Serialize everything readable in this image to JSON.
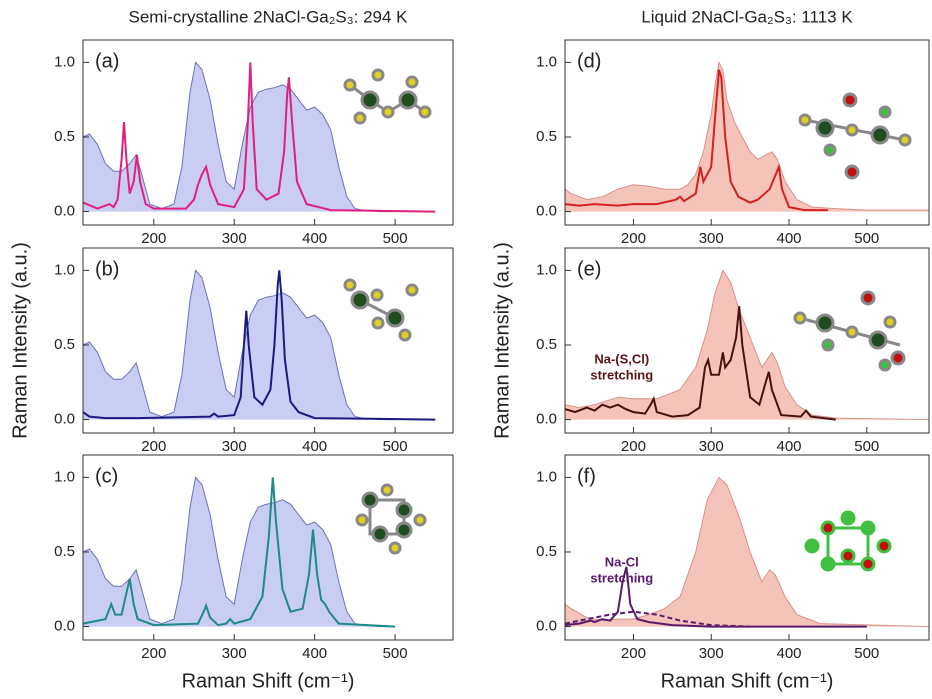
{
  "chart_data": [
    {
      "type": "line",
      "title": "Semi-crystalline 2NaCl-Ga₂S₃: 294 K",
      "label": "(a)",
      "xlim": [
        112,
        572
      ],
      "ylim": [
        -0.09,
        1.15
      ],
      "xticks": [
        200,
        300,
        400,
        500
      ],
      "yticks": [
        {
          "value": 0,
          "label": "0.0"
        },
        {
          "value": 0.5,
          "label": "0.5"
        },
        {
          "value": 1,
          "label": "1.0"
        }
      ],
      "series": [
        {
          "color": "#6c72b8",
          "fill_color": "#c9cdf3",
          "x": [
            112,
            120,
            130,
            140,
            150,
            160,
            170,
            178,
            185,
            195,
            210,
            225,
            235,
            245,
            252,
            260,
            270,
            280,
            290,
            300,
            310,
            320,
            330,
            340,
            350,
            360,
            370,
            380,
            390,
            400,
            410,
            420,
            430,
            440,
            450,
            460,
            480,
            500
          ],
          "values": [
            0.5,
            0.52,
            0.45,
            0.32,
            0.27,
            0.27,
            0.32,
            0.38,
            0.25,
            0.05,
            0.02,
            0.05,
            0.3,
            0.8,
            1.0,
            0.95,
            0.75,
            0.45,
            0.2,
            0.15,
            0.45,
            0.7,
            0.8,
            0.82,
            0.83,
            0.85,
            0.82,
            0.75,
            0.68,
            0.7,
            0.65,
            0.55,
            0.3,
            0.1,
            0.02,
            0.01,
            0,
            0
          ]
        },
        {
          "color": "#e0207f",
          "x": [
            112,
            130,
            145,
            150,
            155,
            160,
            163,
            166,
            170,
            175,
            179,
            183,
            190,
            200,
            240,
            250,
            255,
            260,
            265,
            270,
            280,
            300,
            312,
            317,
            320,
            323,
            328,
            340,
            355,
            362,
            366,
            368,
            372,
            378,
            390,
            420,
            550
          ],
          "values": [
            0.06,
            0.02,
            0.05,
            0.03,
            0.08,
            0.35,
            0.6,
            0.35,
            0.12,
            0.2,
            0.38,
            0.2,
            0.05,
            0.02,
            0.02,
            0.08,
            0.18,
            0.25,
            0.3,
            0.18,
            0.05,
            0.03,
            0.15,
            0.6,
            1.0,
            0.6,
            0.15,
            0.08,
            0.12,
            0.4,
            0.8,
            0.9,
            0.6,
            0.2,
            0.05,
            0.01,
            0
          ]
        }
      ]
    },
    {
      "type": "line",
      "label": "(b)",
      "ylabel": "Raman Intensity (a.u.)",
      "xlim": [
        112,
        572
      ],
      "ylim": [
        -0.09,
        1.15
      ],
      "xticks": [
        200,
        300,
        400,
        500
      ],
      "yticks": [
        {
          "value": 0,
          "label": "0.0"
        },
        {
          "value": 0.5,
          "label": "0.5"
        },
        {
          "value": 1,
          "label": "1.0"
        }
      ],
      "series": [
        {
          "color": "#6c72b8",
          "fill_color": "#c9cdf3",
          "x": [
            112,
            120,
            130,
            140,
            150,
            160,
            170,
            178,
            185,
            195,
            210,
            225,
            235,
            245,
            252,
            260,
            270,
            280,
            290,
            300,
            310,
            320,
            330,
            340,
            350,
            360,
            370,
            380,
            390,
            400,
            410,
            420,
            430,
            440,
            450,
            460,
            480,
            500
          ],
          "values": [
            0.5,
            0.52,
            0.45,
            0.32,
            0.27,
            0.27,
            0.32,
            0.38,
            0.25,
            0.05,
            0.02,
            0.05,
            0.3,
            0.8,
            1.0,
            0.95,
            0.75,
            0.45,
            0.2,
            0.15,
            0.45,
            0.7,
            0.8,
            0.82,
            0.83,
            0.85,
            0.82,
            0.75,
            0.68,
            0.7,
            0.65,
            0.55,
            0.3,
            0.1,
            0.02,
            0.01,
            0,
            0
          ]
        },
        {
          "color": "#1a1a80",
          "x": [
            112,
            120,
            140,
            180,
            270,
            275,
            280,
            300,
            308,
            312,
            315,
            318,
            325,
            335,
            345,
            350,
            354,
            356,
            359,
            363,
            370,
            380,
            400,
            550
          ],
          "values": [
            0.05,
            0.02,
            0.01,
            0.01,
            0.02,
            0.04,
            0.02,
            0.03,
            0.15,
            0.5,
            0.73,
            0.5,
            0.15,
            0.1,
            0.2,
            0.5,
            0.9,
            1.0,
            0.8,
            0.4,
            0.12,
            0.05,
            0.01,
            0
          ]
        }
      ]
    },
    {
      "type": "line",
      "label": "(c)",
      "xlabel": "Raman Shift (cm⁻¹)",
      "xlim": [
        112,
        572
      ],
      "ylim": [
        -0.09,
        1.15
      ],
      "xticks": [
        200,
        300,
        400,
        500
      ],
      "yticks": [
        {
          "value": 0,
          "label": "0.0"
        },
        {
          "value": 0.5,
          "label": "0.5"
        },
        {
          "value": 1,
          "label": "1.0"
        }
      ],
      "series": [
        {
          "color": "#6c72b8",
          "fill_color": "#c9cdf3",
          "x": [
            112,
            120,
            130,
            140,
            150,
            160,
            170,
            178,
            185,
            195,
            210,
            225,
            235,
            245,
            252,
            260,
            270,
            280,
            290,
            300,
            310,
            320,
            330,
            340,
            350,
            360,
            370,
            380,
            390,
            400,
            410,
            420,
            430,
            440,
            450,
            460,
            480,
            500
          ],
          "values": [
            0.5,
            0.52,
            0.45,
            0.32,
            0.27,
            0.27,
            0.32,
            0.38,
            0.25,
            0.05,
            0.02,
            0.05,
            0.3,
            0.8,
            1.0,
            0.95,
            0.75,
            0.45,
            0.2,
            0.15,
            0.45,
            0.7,
            0.8,
            0.82,
            0.83,
            0.85,
            0.82,
            0.75,
            0.68,
            0.7,
            0.65,
            0.55,
            0.3,
            0.1,
            0.02,
            0.01,
            0,
            0
          ]
        },
        {
          "color": "#1e8a8a",
          "x": [
            112,
            140,
            147,
            152,
            160,
            165,
            170,
            175,
            180,
            200,
            255,
            262,
            265,
            270,
            280,
            290,
            295,
            300,
            320,
            335,
            343,
            348,
            352,
            360,
            370,
            385,
            393,
            398,
            403,
            408,
            413,
            418,
            430,
            500
          ],
          "values": [
            0.02,
            0.05,
            0.15,
            0.08,
            0.08,
            0.2,
            0.32,
            0.15,
            0.05,
            0.01,
            0.02,
            0.1,
            0.14,
            0.06,
            0.01,
            0.02,
            0.05,
            0.02,
            0.05,
            0.2,
            0.6,
            1.0,
            0.7,
            0.25,
            0.1,
            0.12,
            0.35,
            0.65,
            0.35,
            0.18,
            0.15,
            0.1,
            0.02,
            0
          ]
        }
      ]
    },
    {
      "type": "line",
      "title": "Liquid 2NaCl-Ga₂S₃: 1113 K",
      "label": "(d)",
      "xlim": [
        112,
        580
      ],
      "ylim": [
        -0.09,
        1.15
      ],
      "xticks": [
        200,
        300,
        400,
        500
      ],
      "yticks": [
        {
          "value": 0,
          "label": "0.0"
        },
        {
          "value": 0.5,
          "label": "0.5"
        },
        {
          "value": 1,
          "label": "1.0"
        }
      ],
      "series": [
        {
          "color": "#d99088",
          "fill_color": "#f4c4bb",
          "x": [
            112,
            120,
            140,
            160,
            180,
            200,
            220,
            240,
            260,
            270,
            280,
            290,
            300,
            305,
            310,
            315,
            320,
            330,
            340,
            350,
            360,
            370,
            378,
            385,
            395,
            410,
            430,
            460,
            500,
            580
          ],
          "values": [
            0.15,
            0.12,
            0.08,
            0.1,
            0.15,
            0.18,
            0.17,
            0.15,
            0.15,
            0.18,
            0.25,
            0.4,
            0.65,
            0.85,
            1.0,
            0.95,
            0.75,
            0.6,
            0.5,
            0.4,
            0.35,
            0.38,
            0.4,
            0.35,
            0.2,
            0.08,
            0.03,
            0.02,
            0.01,
            0.01
          ]
        },
        {
          "color": "#d42020",
          "x": [
            112,
            130,
            150,
            180,
            200,
            230,
            255,
            260,
            265,
            280,
            286,
            290,
            300,
            306,
            310,
            313,
            318,
            325,
            335,
            350,
            360,
            375,
            383,
            387,
            391,
            400,
            420,
            450
          ],
          "values": [
            0.05,
            0.04,
            0.05,
            0.04,
            0.05,
            0.05,
            0.08,
            0.1,
            0.07,
            0.12,
            0.3,
            0.2,
            0.3,
            0.7,
            0.95,
            0.9,
            0.5,
            0.2,
            0.1,
            0.06,
            0.08,
            0.15,
            0.25,
            0.3,
            0.15,
            0.03,
            0.01,
            0.01
          ]
        }
      ]
    },
    {
      "type": "line",
      "label": "(e)",
      "ylabel": "Raman Intensity (a.u.)",
      "annotation": [
        "Na-(S,Cl)",
        "stretching"
      ],
      "annotation_color": "#5a1414",
      "xlim": [
        112,
        580
      ],
      "ylim": [
        -0.09,
        1.15
      ],
      "xticks": [
        200,
        300,
        400,
        500
      ],
      "yticks": [
        {
          "value": 0,
          "label": "0.0"
        },
        {
          "value": 0.5,
          "label": "0.5"
        },
        {
          "value": 1,
          "label": "1.0"
        }
      ],
      "series": [
        {
          "color": "#d99088",
          "fill_color": "#f4c4bb",
          "x": [
            112,
            130,
            150,
            180,
            200,
            230,
            260,
            280,
            295,
            305,
            315,
            325,
            335,
            350,
            365,
            378,
            385,
            395,
            410,
            430,
            460,
            580
          ],
          "values": [
            0.1,
            0.08,
            0.1,
            0.15,
            0.14,
            0.14,
            0.2,
            0.35,
            0.6,
            0.85,
            1.0,
            0.92,
            0.75,
            0.55,
            0.35,
            0.45,
            0.38,
            0.22,
            0.1,
            0.03,
            0.01,
            0
          ]
        },
        {
          "color": "#4a1010",
          "x": [
            112,
            125,
            140,
            150,
            160,
            170,
            180,
            190,
            200,
            215,
            222,
            226,
            230,
            250,
            270,
            285,
            292,
            296,
            300,
            304,
            310,
            315,
            318,
            325,
            332,
            336,
            340,
            350,
            362,
            370,
            374,
            378,
            390,
            415,
            422,
            428,
            460
          ],
          "values": [
            0.07,
            0.05,
            0.08,
            0.06,
            0.1,
            0.08,
            0.1,
            0.07,
            0.05,
            0.04,
            0.1,
            0.14,
            0.05,
            0.02,
            0.03,
            0.08,
            0.35,
            0.4,
            0.3,
            0.3,
            0.3,
            0.45,
            0.35,
            0.4,
            0.55,
            0.76,
            0.5,
            0.15,
            0.1,
            0.25,
            0.32,
            0.2,
            0.03,
            0.02,
            0.06,
            0.02,
            0
          ]
        }
      ]
    },
    {
      "type": "line",
      "label": "(f)",
      "xlabel": "Raman Shift (cm⁻¹)",
      "annotation": [
        "Na-Cl",
        "stretching"
      ],
      "annotation_color": "#5a1a6a",
      "xlim": [
        112,
        580
      ],
      "ylim": [
        -0.09,
        1.15
      ],
      "xticks": [
        200,
        300,
        400,
        500
      ],
      "yticks": [
        {
          "value": 0,
          "label": "0.0"
        },
        {
          "value": 0.5,
          "label": "0.5"
        },
        {
          "value": 1,
          "label": "1.0"
        }
      ],
      "series": [
        {
          "color": "#d99088",
          "fill_color": "#f4c4bb",
          "x": [
            112,
            120,
            140,
            160,
            180,
            200,
            220,
            240,
            260,
            280,
            295,
            310,
            320,
            335,
            350,
            365,
            375,
            382,
            395,
            410,
            440,
            580
          ],
          "values": [
            0.15,
            0.12,
            0.06,
            0.04,
            0.05,
            0.05,
            0.08,
            0.12,
            0.2,
            0.5,
            0.85,
            1.0,
            0.95,
            0.75,
            0.5,
            0.3,
            0.38,
            0.35,
            0.2,
            0.08,
            0.02,
            0
          ]
        },
        {
          "color": "#5a1a6a",
          "x": [
            112,
            130,
            145,
            150,
            160,
            170,
            180,
            186,
            191,
            196,
            205,
            220,
            250,
            300,
            500
          ],
          "values": [
            0.01,
            0.02,
            0.04,
            0.03,
            0.05,
            0.04,
            0.1,
            0.3,
            0.4,
            0.15,
            0.05,
            0.03,
            0.01,
            0,
            0
          ]
        },
        {
          "color": "#5a1a6a",
          "dash": true,
          "x": [
            112,
            140,
            170,
            200,
            230,
            260,
            300,
            350
          ],
          "values": [
            0.02,
            0.05,
            0.08,
            0.1,
            0.08,
            0.04,
            0.01,
            0
          ]
        }
      ]
    }
  ]
}
